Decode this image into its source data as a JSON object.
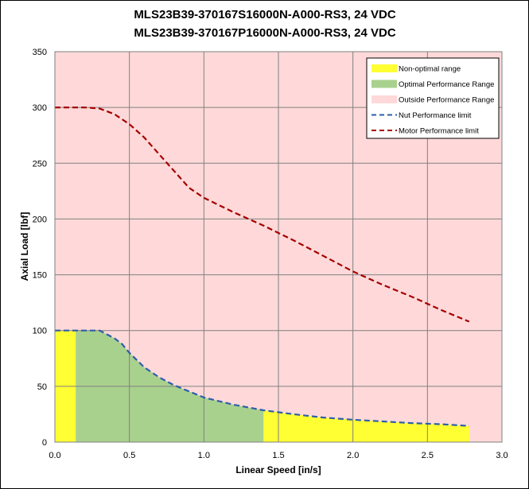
{
  "chart_data": {
    "type": "area",
    "title_lines": [
      "MLS23B39-370167S16000N-A000-RS3, 24 VDC",
      "MLS23B39-370167P16000N-A000-RS3, 24 VDC"
    ],
    "xlabel": "Linear Speed [in/s]",
    "ylabel": "Axial Load [lbf]",
    "xlim": [
      0,
      3.0
    ],
    "ylim": [
      0,
      350
    ],
    "x_ticks": [
      "0.0",
      "0.5",
      "1.0",
      "1.5",
      "2.0",
      "2.5",
      "3.0"
    ],
    "y_ticks": [
      "0",
      "50",
      "100",
      "150",
      "200",
      "250",
      "300",
      "350"
    ],
    "grid": true,
    "plot_background": "#ffd9d9",
    "legend_position": "top-right",
    "legend": [
      {
        "label": "Non-optimal range",
        "kind": "fill",
        "color": "#ffff33"
      },
      {
        "label": "Optimal Performance Range",
        "kind": "fill",
        "color": "#a9d18e"
      },
      {
        "label": "Outside Performance Range",
        "kind": "fill",
        "color": "#ffd9d9"
      },
      {
        "label": "Nut Performance limit",
        "kind": "dash",
        "color": "#2e5fa8"
      },
      {
        "label": "Motor Performance limit",
        "kind": "dash",
        "color": "#a50000"
      }
    ],
    "series": [
      {
        "name": "Nut Performance limit",
        "color": "#2e5fa8",
        "x": [
          0,
          0.1,
          0.2,
          0.3,
          0.4,
          0.45,
          0.5,
          0.6,
          0.7,
          0.8,
          0.9,
          1.0,
          1.2,
          1.4,
          1.6,
          1.8,
          2.0,
          2.2,
          2.4,
          2.6,
          2.78
        ],
        "y": [
          100,
          100,
          100,
          100,
          93,
          88,
          80,
          67,
          58,
          51,
          45.5,
          40,
          33.5,
          28.5,
          25,
          22,
          20,
          18.5,
          17,
          16,
          14.5
        ]
      },
      {
        "name": "Motor Performance limit",
        "color": "#a50000",
        "x": [
          0,
          0.1,
          0.2,
          0.3,
          0.4,
          0.5,
          0.6,
          0.7,
          0.8,
          0.9,
          1.0,
          1.2,
          1.4,
          1.6,
          1.8,
          2.0,
          2.2,
          2.4,
          2.6,
          2.78
        ],
        "y": [
          300,
          300,
          300,
          299,
          294,
          285,
          273,
          258,
          243,
          228,
          219,
          206,
          194,
          181,
          167,
          153,
          141,
          130,
          118,
          108
        ]
      }
    ],
    "regions": [
      {
        "name": "Non-optimal range",
        "color": "#ffff33",
        "x_range": [
          0,
          0.14
        ]
      },
      {
        "name": "Optimal Performance Range",
        "color": "#a9d18e",
        "x_range": [
          0.14,
          1.4
        ]
      },
      {
        "name": "Non-optimal range",
        "color": "#ffff33",
        "x_range": [
          1.4,
          2.78
        ]
      }
    ]
  }
}
